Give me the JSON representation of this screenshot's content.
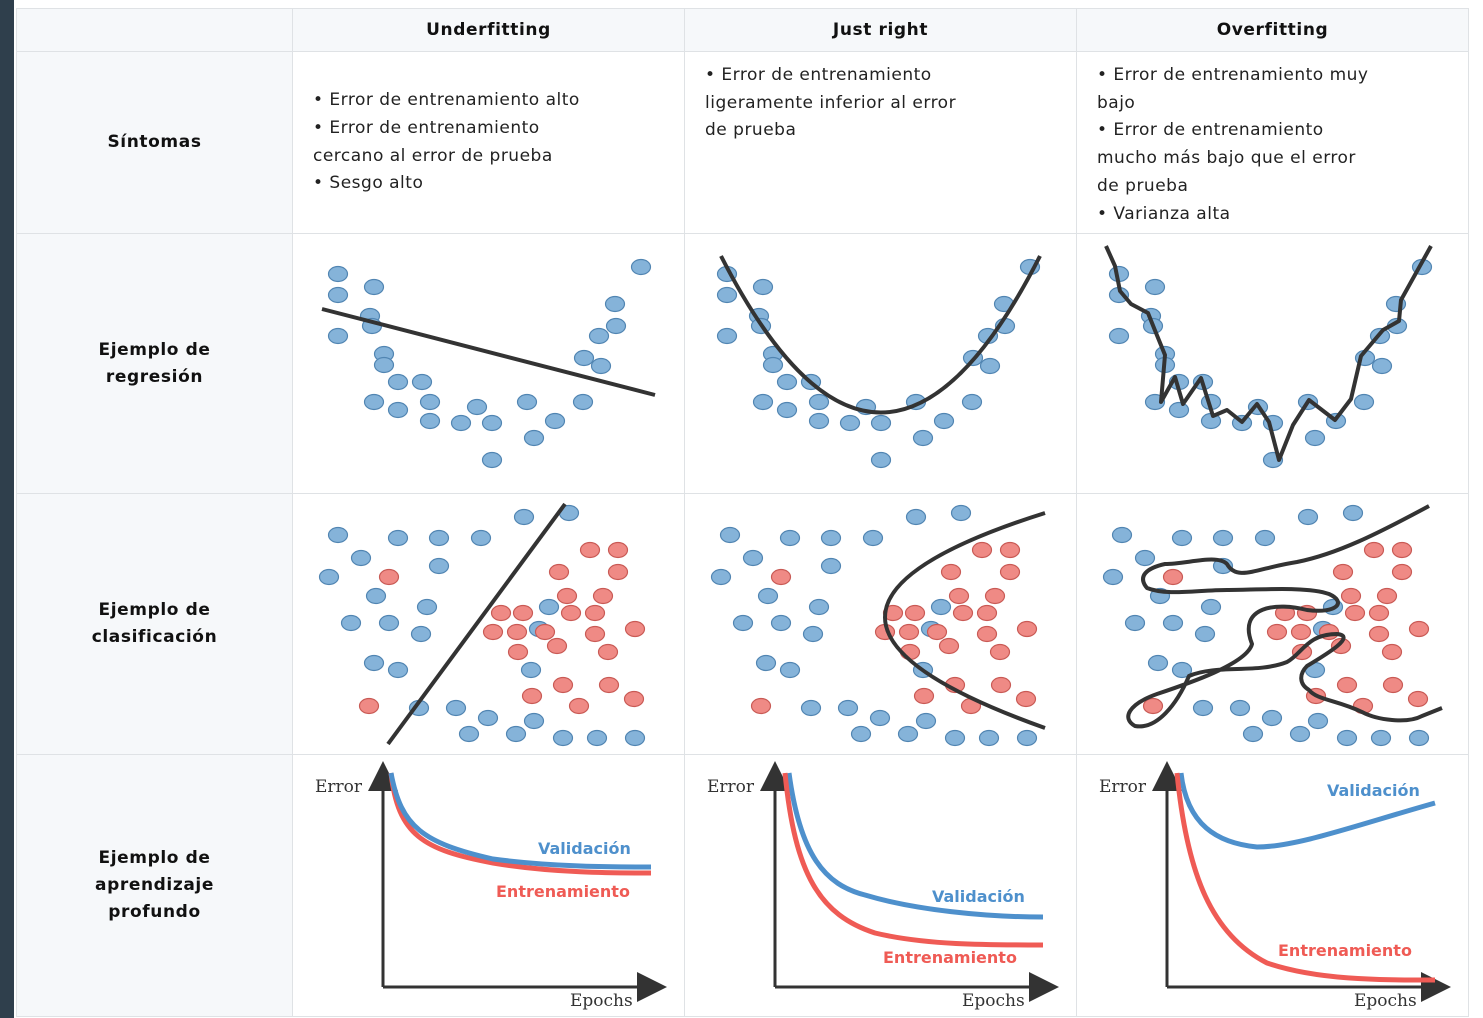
{
  "headers": {
    "corner": "",
    "columns": [
      "Underfitting",
      "Just right",
      "Overfitting"
    ]
  },
  "rows": {
    "symptoms": {
      "label": "Síntomas"
    },
    "regression": {
      "label_lines": [
        "Ejemplo de",
        "regresión"
      ]
    },
    "classification": {
      "label_lines": [
        "Ejemplo de",
        "clasificación"
      ]
    },
    "deep_learning": {
      "label_lines": [
        "Ejemplo de",
        "aprendizaje",
        "profundo"
      ]
    }
  },
  "symptoms": [
    [
      "• Error de entrenamiento alto",
      "• Error de entrenamiento",
      "cercano al error de prueba",
      "• Sesgo alto"
    ],
    [
      "• Error de entrenamiento",
      "ligeramente inferior al error",
      "de prueba"
    ],
    [
      "• Error de entrenamiento muy",
      "bajo",
      "• Error de entrenamiento",
      "mucho más bajo que el error",
      "de prueba",
      "• Varianza alta"
    ]
  ],
  "learning_curves": {
    "x_axis_label": "Epochs",
    "y_axis_label": "Error",
    "validation_label": "Validación",
    "training_label": "Entrenamiento"
  },
  "colors": {
    "blue_point": "#85b3d9",
    "blue_stroke": "#5185b2",
    "red_point": "#ef8a85",
    "red_stroke": "#c95a55",
    "validation_line": "#4e90cc",
    "training_line": "#ef5b55",
    "model_line": "#333333",
    "header_bg": "#f6f8fa"
  }
}
